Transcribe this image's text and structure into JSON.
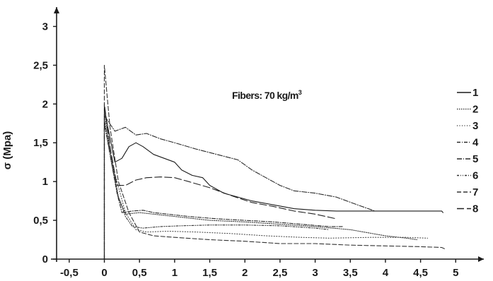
{
  "chart_data": {
    "type": "line",
    "title": "",
    "annotation": "Fibers: 70 kg/m",
    "annotation_sup": "3",
    "xlabel": "",
    "ylabel": "σ (Mpa)",
    "xlim": [
      -0.7,
      5.4
    ],
    "ylim": [
      0,
      3.25
    ],
    "x_ticks": [
      -0.5,
      0,
      0.5,
      1,
      1.5,
      2,
      2.5,
      3,
      3.5,
      4,
      4.5,
      5
    ],
    "x_tick_labels": [
      "-0,5",
      "0",
      "0,5",
      "1",
      "1,5",
      "2",
      "2,5",
      "3",
      "3,5",
      "4",
      "4,5",
      "5"
    ],
    "y_ticks": [
      0,
      0.5,
      1,
      1.5,
      2,
      2.5,
      3
    ],
    "y_tick_labels": [
      "0",
      "0,5",
      "1",
      "1,5",
      "2",
      "2,5",
      "3"
    ],
    "grid": false,
    "legend_position": "right",
    "series": [
      {
        "name": "1",
        "color": "#1a1a1a",
        "dash": "",
        "points": [
          [
            0,
            0
          ],
          [
            0,
            1.95
          ],
          [
            0.05,
            1.7
          ],
          [
            0.15,
            1.25
          ],
          [
            0.25,
            1.3
          ],
          [
            0.35,
            1.45
          ],
          [
            0.45,
            1.5
          ],
          [
            0.55,
            1.45
          ],
          [
            0.7,
            1.35
          ],
          [
            0.85,
            1.3
          ],
          [
            1.0,
            1.25
          ],
          [
            1.1,
            1.15
          ],
          [
            1.25,
            1.08
          ],
          [
            1.4,
            1.05
          ],
          [
            1.5,
            0.95
          ],
          [
            1.7,
            0.85
          ],
          [
            1.9,
            0.8
          ],
          [
            2.1,
            0.75
          ],
          [
            2.4,
            0.7
          ],
          [
            2.7,
            0.65
          ],
          [
            3.0,
            0.63
          ],
          [
            3.3,
            0.62
          ],
          [
            3.9,
            0.62
          ],
          [
            4.8,
            0.62
          ],
          [
            4.82,
            0.6
          ]
        ]
      },
      {
        "name": "2",
        "color": "#444444",
        "dash": "1.5,1.5",
        "points": [
          [
            0,
            0
          ],
          [
            0,
            1.9
          ],
          [
            0.1,
            1.3
          ],
          [
            0.2,
            0.8
          ],
          [
            0.3,
            0.58
          ],
          [
            0.5,
            0.6
          ],
          [
            0.7,
            0.58
          ],
          [
            1.0,
            0.55
          ],
          [
            1.5,
            0.5
          ],
          [
            2.0,
            0.48
          ],
          [
            2.5,
            0.45
          ],
          [
            3.0,
            0.42
          ],
          [
            3.5,
            0.38
          ],
          [
            4.0,
            0.3
          ],
          [
            4.3,
            0.27
          ],
          [
            4.45,
            0.25
          ]
        ]
      },
      {
        "name": "3",
        "color": "#444444",
        "dash": "1,2.5",
        "points": [
          [
            0,
            0
          ],
          [
            0,
            1.75
          ],
          [
            0.15,
            1.1
          ],
          [
            0.3,
            0.6
          ],
          [
            0.45,
            0.38
          ],
          [
            0.6,
            0.35
          ],
          [
            0.9,
            0.36
          ],
          [
            1.3,
            0.35
          ],
          [
            1.8,
            0.33
          ],
          [
            2.3,
            0.3
          ],
          [
            2.8,
            0.28
          ],
          [
            3.2,
            0.27
          ],
          [
            3.8,
            0.28
          ],
          [
            4.3,
            0.28
          ],
          [
            4.6,
            0.27
          ]
        ]
      },
      {
        "name": "4",
        "color": "#2a2a2a",
        "dash": "5,2,1,2",
        "points": [
          [
            0,
            0
          ],
          [
            0,
            1.8
          ],
          [
            0.08,
            1.35
          ],
          [
            0.18,
            0.85
          ],
          [
            0.25,
            0.6
          ],
          [
            0.4,
            0.62
          ],
          [
            0.55,
            0.63
          ],
          [
            0.7,
            0.6
          ],
          [
            0.9,
            0.58
          ],
          [
            1.2,
            0.55
          ],
          [
            1.6,
            0.52
          ],
          [
            2.0,
            0.5
          ],
          [
            2.4,
            0.48
          ],
          [
            2.8,
            0.45
          ],
          [
            3.2,
            0.42
          ],
          [
            3.4,
            0.42
          ]
        ]
      },
      {
        "name": "5",
        "color": "#2a2a2a",
        "dash": "7,2,1,2",
        "points": [
          [
            0,
            0
          ],
          [
            0,
            1.85
          ],
          [
            0.15,
            1.65
          ],
          [
            0.3,
            1.7
          ],
          [
            0.45,
            1.6
          ],
          [
            0.6,
            1.62
          ],
          [
            0.8,
            1.55
          ],
          [
            1.0,
            1.5
          ],
          [
            1.3,
            1.42
          ],
          [
            1.6,
            1.35
          ],
          [
            1.9,
            1.28
          ],
          [
            2.1,
            1.15
          ],
          [
            2.3,
            1.05
          ],
          [
            2.5,
            0.95
          ],
          [
            2.7,
            0.88
          ],
          [
            3.0,
            0.85
          ],
          [
            3.3,
            0.8
          ],
          [
            3.6,
            0.7
          ],
          [
            3.85,
            0.62
          ]
        ]
      },
      {
        "name": "6",
        "color": "#333333",
        "dash": "3,2,1,2,1,2",
        "points": [
          [
            0,
            0
          ],
          [
            0,
            1.75
          ],
          [
            0.1,
            1.25
          ],
          [
            0.2,
            0.8
          ],
          [
            0.3,
            0.55
          ],
          [
            0.4,
            0.42
          ],
          [
            0.55,
            0.4
          ],
          [
            0.8,
            0.42
          ],
          [
            1.1,
            0.43
          ],
          [
            1.5,
            0.44
          ],
          [
            2.0,
            0.44
          ],
          [
            2.5,
            0.43
          ],
          [
            3.0,
            0.4
          ],
          [
            3.2,
            0.38
          ]
        ]
      },
      {
        "name": "7",
        "color": "#333333",
        "dash": "6,3",
        "points": [
          [
            0,
            0
          ],
          [
            0,
            2.5
          ],
          [
            0.08,
            1.7
          ],
          [
            0.2,
            1.0
          ],
          [
            0.35,
            0.6
          ],
          [
            0.5,
            0.35
          ],
          [
            0.7,
            0.3
          ],
          [
            1.0,
            0.28
          ],
          [
            1.5,
            0.25
          ],
          [
            2.0,
            0.23
          ],
          [
            2.5,
            0.2
          ],
          [
            3.0,
            0.2
          ],
          [
            3.5,
            0.18
          ],
          [
            4.0,
            0.17
          ],
          [
            4.5,
            0.16
          ],
          [
            4.8,
            0.15
          ],
          [
            4.85,
            0.13
          ]
        ]
      },
      {
        "name": "8",
        "color": "#222222",
        "dash": "10,4",
        "points": [
          [
            0,
            0
          ],
          [
            0,
            2.0
          ],
          [
            0.08,
            1.45
          ],
          [
            0.18,
            0.95
          ],
          [
            0.3,
            0.95
          ],
          [
            0.45,
            1.02
          ],
          [
            0.6,
            1.05
          ],
          [
            0.8,
            1.06
          ],
          [
            1.0,
            1.05
          ],
          [
            1.2,
            1.0
          ],
          [
            1.5,
            0.92
          ],
          [
            1.8,
            0.82
          ],
          [
            2.1,
            0.73
          ],
          [
            2.4,
            0.68
          ],
          [
            2.7,
            0.62
          ],
          [
            3.0,
            0.58
          ],
          [
            3.3,
            0.52
          ]
        ]
      }
    ]
  }
}
